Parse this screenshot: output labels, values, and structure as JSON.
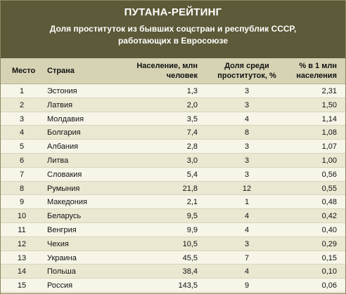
{
  "header": {
    "title": "ПУТАНА-РЕЙТИНГ",
    "subtitle": "Доля проституток из бывших соцстран и республик СССР, работающих в Евросоюзе"
  },
  "columns": {
    "place": "Место",
    "country": "Страна",
    "population": "Население, млн человек",
    "share": "Доля среди проституток, %",
    "per_million": "% в 1 млн населения"
  },
  "rows": [
    {
      "place": "1",
      "country": "Эстония",
      "population": "1,3",
      "share": "3",
      "per_million": "2,31"
    },
    {
      "place": "2",
      "country": "Латвия",
      "population": "2,0",
      "share": "3",
      "per_million": "1,50"
    },
    {
      "place": "3",
      "country": "Молдавия",
      "population": "3,5",
      "share": "4",
      "per_million": "1,14"
    },
    {
      "place": "4",
      "country": "Болгария",
      "population": "7,4",
      "share": "8",
      "per_million": "1,08"
    },
    {
      "place": "5",
      "country": "Албания",
      "population": "2,8",
      "share": "3",
      "per_million": "1,07"
    },
    {
      "place": "6",
      "country": "Литва",
      "population": "3,0",
      "share": "3",
      "per_million": "1,00"
    },
    {
      "place": "7",
      "country": "Словакия",
      "population": "5,4",
      "share": "3",
      "per_million": "0,56"
    },
    {
      "place": "8",
      "country": "Румыния",
      "population": "21,8",
      "share": "12",
      "per_million": "0,55"
    },
    {
      "place": "9",
      "country": "Македония",
      "population": "2,1",
      "share": "1",
      "per_million": "0,48"
    },
    {
      "place": "10",
      "country": "Беларусь",
      "population": "9,5",
      "share": "4",
      "per_million": "0,42"
    },
    {
      "place": "11",
      "country": "Венгрия",
      "population": "9,9",
      "share": "4",
      "per_million": "0,40"
    },
    {
      "place": "12",
      "country": "Чехия",
      "population": "10,5",
      "share": "3",
      "per_million": "0,29"
    },
    {
      "place": "13",
      "country": "Украина",
      "population": "45,5",
      "share": "7",
      "per_million": "0,15"
    },
    {
      "place": "14",
      "country": "Польша",
      "population": "38,4",
      "share": "4",
      "per_million": "0,10"
    },
    {
      "place": "15",
      "country": "Россия",
      "population": "143,5",
      "share": "9",
      "per_million": "0,06"
    }
  ]
}
